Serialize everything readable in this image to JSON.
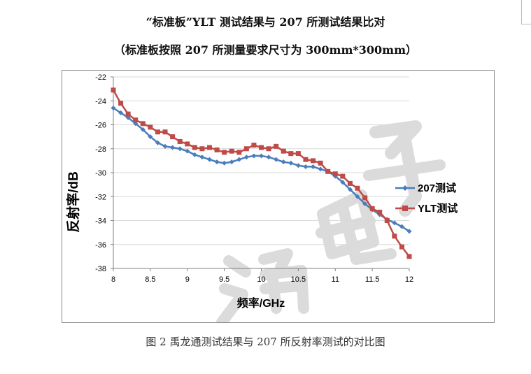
{
  "header": {
    "title": "“标准板”YLT 测试结果与 207 所测试结果比对",
    "subtitle": "（标准板按照 207 所测量要求尺寸为 300mm*300mm）"
  },
  "caption": "图 2  禹龙通测试结果与 207 所反射率测试的对比图",
  "colors": {
    "series_207": "#4a7ebb",
    "series_ylt": "#be4b48",
    "grid": "#d9d9d9"
  },
  "chart_data": {
    "type": "line",
    "xlabel": "频率/GHz",
    "ylabel": "反射率/dB",
    "xlim": [
      8,
      12
    ],
    "ylim": [
      -38,
      -22
    ],
    "xticks": [
      8,
      8.5,
      9,
      9.5,
      10,
      10.5,
      11,
      11.5,
      12
    ],
    "yticks": [
      -22,
      -24,
      -26,
      -28,
      -30,
      -32,
      -34,
      -36,
      -38
    ],
    "xtick_labels": [
      "8",
      "8.5",
      "9",
      "9.5",
      "10",
      "10.5",
      "11",
      "11.5",
      "12"
    ],
    "ytick_labels": [
      "-22",
      "-24",
      "-26",
      "-28",
      "-30",
      "-32",
      "-34",
      "-36",
      "-38"
    ],
    "grid": "horizontal",
    "legend": "right",
    "series": [
      {
        "name": "207测试",
        "marker": "diamond",
        "points": [
          [
            8.0,
            -24.6
          ],
          [
            8.1,
            -25.0
          ],
          [
            8.2,
            -25.4
          ],
          [
            8.3,
            -25.9
          ],
          [
            8.4,
            -26.4
          ],
          [
            8.5,
            -27.0
          ],
          [
            8.6,
            -27.5
          ],
          [
            8.7,
            -27.8
          ],
          [
            8.8,
            -27.9
          ],
          [
            8.9,
            -28.0
          ],
          [
            9.0,
            -28.2
          ],
          [
            9.1,
            -28.5
          ],
          [
            9.2,
            -28.7
          ],
          [
            9.3,
            -28.9
          ],
          [
            9.4,
            -29.1
          ],
          [
            9.5,
            -29.2
          ],
          [
            9.6,
            -29.1
          ],
          [
            9.7,
            -28.9
          ],
          [
            9.8,
            -28.7
          ],
          [
            9.9,
            -28.6
          ],
          [
            10.0,
            -28.6
          ],
          [
            10.1,
            -28.7
          ],
          [
            10.2,
            -28.9
          ],
          [
            10.3,
            -29.1
          ],
          [
            10.4,
            -29.2
          ],
          [
            10.5,
            -29.4
          ],
          [
            10.6,
            -29.5
          ],
          [
            10.7,
            -29.5
          ],
          [
            10.8,
            -29.7
          ],
          [
            10.9,
            -29.9
          ],
          [
            11.0,
            -30.3
          ],
          [
            11.1,
            -30.8
          ],
          [
            11.2,
            -31.4
          ],
          [
            11.3,
            -32.0
          ],
          [
            11.4,
            -32.6
          ],
          [
            11.5,
            -33.1
          ],
          [
            11.6,
            -33.5
          ],
          [
            11.7,
            -33.9
          ],
          [
            11.8,
            -34.2
          ],
          [
            11.9,
            -34.5
          ],
          [
            12.0,
            -34.9
          ]
        ]
      },
      {
        "name": "YLT测试",
        "marker": "square",
        "points": [
          [
            8.0,
            -23.1
          ],
          [
            8.1,
            -24.2
          ],
          [
            8.2,
            -25.1
          ],
          [
            8.3,
            -25.6
          ],
          [
            8.4,
            -25.9
          ],
          [
            8.5,
            -26.2
          ],
          [
            8.6,
            -26.6
          ],
          [
            8.7,
            -26.6
          ],
          [
            8.8,
            -27.0
          ],
          [
            8.9,
            -27.4
          ],
          [
            9.0,
            -27.6
          ],
          [
            9.1,
            -27.9
          ],
          [
            9.2,
            -28.0
          ],
          [
            9.3,
            -27.9
          ],
          [
            9.4,
            -28.1
          ],
          [
            9.5,
            -28.3
          ],
          [
            9.6,
            -28.2
          ],
          [
            9.7,
            -28.3
          ],
          [
            9.8,
            -28.0
          ],
          [
            9.9,
            -27.7
          ],
          [
            10.0,
            -27.9
          ],
          [
            10.1,
            -28.0
          ],
          [
            10.2,
            -27.8
          ],
          [
            10.3,
            -28.2
          ],
          [
            10.4,
            -28.4
          ],
          [
            10.5,
            -28.4
          ],
          [
            10.6,
            -28.9
          ],
          [
            10.7,
            -29.0
          ],
          [
            10.8,
            -29.2
          ],
          [
            10.9,
            -29.9
          ],
          [
            11.0,
            -30.1
          ],
          [
            11.1,
            -30.3
          ],
          [
            11.2,
            -30.9
          ],
          [
            11.3,
            -31.3
          ],
          [
            11.4,
            -32.1
          ],
          [
            11.5,
            -33.0
          ],
          [
            11.6,
            -33.3
          ],
          [
            11.7,
            -34.0
          ],
          [
            11.8,
            -35.3
          ],
          [
            11.9,
            -36.2
          ],
          [
            12.0,
            -37.0
          ]
        ]
      }
    ]
  }
}
